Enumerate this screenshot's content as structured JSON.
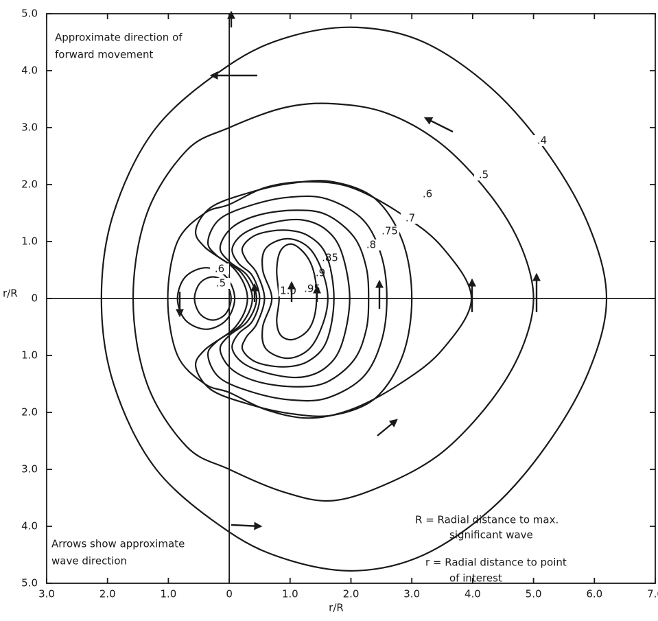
{
  "chart_data": {
    "type": "contour",
    "xlabel": "r/R",
    "ylabel": "r/R",
    "xlim": [
      -3,
      7
    ],
    "ylim": [
      -5,
      5
    ],
    "xticks": [
      {
        "value": -3,
        "label": "3.0"
      },
      {
        "value": -2,
        "label": "2.0"
      },
      {
        "value": -1,
        "label": "1.0"
      },
      0,
      {
        "value": 1,
        "label": "1.0"
      },
      {
        "value": 2,
        "label": "2.0"
      },
      {
        "value": 3,
        "label": "3.0"
      },
      {
        "value": 4,
        "label": "4.0"
      },
      {
        "value": 5,
        "label": "5.0"
      },
      {
        "value": 6,
        "label": "6.0"
      },
      {
        "value": 7,
        "label": "7.0"
      }
    ],
    "yticks": [
      {
        "value": 5,
        "label": "5.0"
      },
      {
        "value": 4,
        "label": "4.0"
      },
      {
        "value": 3,
        "label": "3.0"
      },
      {
        "value": 2,
        "label": "2.0"
      },
      {
        "value": 1,
        "label": "1.0"
      },
      0,
      {
        "value": -1,
        "label": "1.0"
      },
      {
        "value": -2,
        "label": "2.0"
      },
      {
        "value": -3,
        "label": "3.0"
      },
      {
        "value": -4,
        "label": "4.0"
      },
      {
        "value": -5,
        "label": "5.0"
      }
    ],
    "annotations": [
      "Approximate direction of",
      "forward movement",
      "Arrows show approximate",
      "wave direction",
      "R = Radial distance to max.",
      "significant wave",
      "r = Radial distance to point",
      "of interest"
    ],
    "contours": [
      {
        "level": 0.4,
        "label": ".4",
        "x": [
          -2.1,
          -1.9,
          -1.2,
          0,
          1,
          2.1,
          3.2,
          4.3,
          5.2,
          5.9,
          6.2,
          5.9,
          5.2,
          4.3,
          3.2,
          2.1,
          1,
          0,
          -1.2,
          -1.9
        ],
        "y": [
          0,
          1.5,
          3.0,
          4.1,
          4.6,
          4.76,
          4.5,
          3.7,
          2.6,
          1.3,
          0,
          -1.3,
          -2.6,
          -3.7,
          -4.5,
          -4.78,
          -4.6,
          -4.1,
          -3.0,
          -1.5
        ]
      },
      {
        "level": 0.5,
        "label": ".5",
        "x": [
          -1.58,
          -1.35,
          -0.7,
          0,
          0.9,
          1.7,
          2.6,
          3.5,
          4.3,
          4.8,
          5.0,
          4.8,
          4.3,
          3.5,
          2.6,
          1.7,
          0.9,
          0,
          -0.7,
          -1.35
        ],
        "y": [
          0,
          1.5,
          2.6,
          3.0,
          3.35,
          3.42,
          3.25,
          2.7,
          1.8,
          0.9,
          0,
          -0.9,
          -1.8,
          -2.7,
          -3.25,
          -3.55,
          -3.4,
          -3.0,
          -2.6,
          -1.5
        ]
      },
      {
        "level": 0.6,
        "label": ".6",
        "x": [
          -1.01,
          -0.85,
          -0.4,
          0,
          0.6,
          1.3,
          2.0,
          2.8,
          3.5,
          3.98,
          3.5,
          2.8,
          2.0,
          1.3,
          0.6,
          0,
          -0.4,
          -0.85
        ],
        "y": [
          0,
          1.0,
          1.5,
          1.65,
          1.95,
          2.05,
          1.95,
          1.5,
          0.9,
          0,
          -0.9,
          -1.5,
          -1.95,
          -2.1,
          -1.95,
          -1.65,
          -1.5,
          -1.0
        ]
      },
      {
        "level": 0.7,
        "label": ".7",
        "x": [
          0.3,
          0.1,
          -0.4,
          -0.55,
          -0.3,
          0.3,
          1.0,
          1.7,
          2.4,
          2.85,
          3.0,
          2.85,
          2.4,
          1.7,
          1.0,
          0.3,
          -0.3,
          -0.55,
          -0.4,
          0.1
        ],
        "y": [
          0,
          0.5,
          0.9,
          1.2,
          1.6,
          1.85,
          2.02,
          2.05,
          1.75,
          1.0,
          0,
          -1.0,
          -1.75,
          -2.05,
          -2.02,
          -1.85,
          -1.6,
          -1.2,
          -0.9,
          -0.5
        ]
      },
      {
        "level": 0.75,
        "label": ".75",
        "x": [
          0.38,
          0.2,
          -0.2,
          -0.35,
          -0.15,
          0.4,
          1.0,
          1.6,
          2.2,
          2.5,
          2.59,
          2.5,
          2.2,
          1.6,
          1.0,
          0.4,
          -0.15,
          -0.35,
          -0.2,
          0.2
        ],
        "y": [
          0,
          0.45,
          0.75,
          1.0,
          1.4,
          1.65,
          1.78,
          1.75,
          1.38,
          0.75,
          0,
          -0.75,
          -1.38,
          -1.75,
          -1.78,
          -1.65,
          -1.4,
          -1.0,
          -0.75,
          -0.45
        ]
      },
      {
        "level": 0.8,
        "label": ".8",
        "x": [
          0.45,
          0.3,
          0.0,
          -0.15,
          0.05,
          0.5,
          1.1,
          1.6,
          2.05,
          2.25,
          2.29,
          2.25,
          2.05,
          1.6,
          1.1,
          0.5,
          0.05,
          -0.15,
          0.0,
          0.3
        ],
        "y": [
          0,
          0.4,
          0.65,
          0.9,
          1.25,
          1.47,
          1.55,
          1.47,
          1.08,
          0.55,
          0,
          -0.55,
          -1.08,
          -1.47,
          -1.55,
          -1.47,
          -1.25,
          -0.9,
          -0.65,
          -0.4
        ]
      },
      {
        "level": 0.85,
        "label": ".85",
        "x": [
          0.5,
          0.38,
          0.15,
          0.05,
          0.25,
          0.7,
          1.2,
          1.6,
          1.85,
          1.98,
          1.85,
          1.6,
          1.2,
          0.7,
          0.25,
          0.05,
          0.15,
          0.38
        ],
        "y": [
          0,
          0.4,
          0.62,
          0.88,
          1.15,
          1.33,
          1.38,
          1.2,
          0.8,
          0,
          -0.8,
          -1.2,
          -1.38,
          -1.33,
          -1.15,
          -0.88,
          -0.62,
          -0.4
        ]
      },
      {
        "level": 0.9,
        "label": ".9",
        "x": [
          0.58,
          0.45,
          0.28,
          0.22,
          0.45,
          0.9,
          1.3,
          1.6,
          1.72,
          1.6,
          1.3,
          0.9,
          0.45,
          0.22,
          0.28,
          0.45
        ],
        "y": [
          0,
          0.45,
          0.68,
          0.9,
          1.12,
          1.2,
          1.1,
          0.75,
          0,
          -0.75,
          -1.1,
          -1.2,
          -1.12,
          -0.9,
          -0.68,
          -0.45
        ]
      },
      {
        "level": 0.95,
        "label": ".95",
        "x": [
          0.7,
          0.55,
          0.6,
          0.95,
          1.3,
          1.52,
          1.62,
          1.52,
          1.3,
          0.95,
          0.6,
          0.55
        ],
        "y": [
          0,
          0.5,
          0.88,
          1.05,
          0.9,
          0.5,
          0,
          -0.5,
          -0.9,
          -1.05,
          -0.88,
          -0.5
        ]
      },
      {
        "level": 1.0,
        "label": "1.0",
        "x": [
          0.82,
          0.78,
          0.85,
          1.05,
          1.3,
          1.42,
          1.42,
          1.3,
          1.05,
          0.85,
          0.78
        ],
        "y": [
          0,
          0.5,
          0.85,
          0.95,
          0.7,
          0.3,
          -0.2,
          -0.55,
          -0.72,
          -0.65,
          -0.4
        ]
      },
      {
        "level": 0.6,
        "label": ".6",
        "x": [
          -0.85,
          -0.72,
          -0.38,
          -0.05,
          0.09,
          -0.05,
          -0.38,
          -0.72
        ],
        "y": [
          0,
          0.38,
          0.54,
          0.38,
          0,
          -0.38,
          -0.54,
          -0.38
        ]
      },
      {
        "level": 0.5,
        "label": ".5",
        "x": [
          -0.57,
          -0.48,
          -0.27,
          -0.06,
          0.03,
          -0.06,
          -0.27,
          -0.48
        ],
        "y": [
          0,
          0.27,
          0.38,
          0.27,
          0,
          -0.27,
          -0.38,
          -0.27
        ]
      }
    ]
  }
}
